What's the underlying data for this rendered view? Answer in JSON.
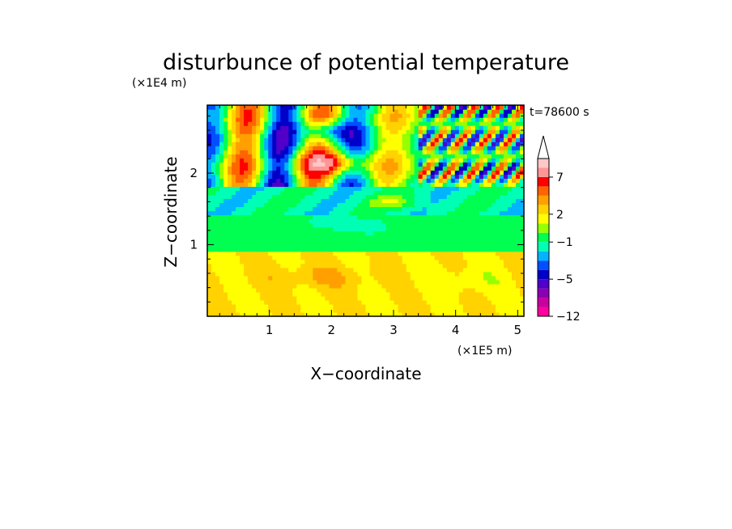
{
  "chart_data": {
    "type": "heatmap",
    "title": "disturbunce of potential temperature",
    "time_label": "t=78600 s",
    "xlabel": "X−coordinate",
    "ylabel": "Z−coordinate",
    "x_scale_label": "(×1E5 m)",
    "y_scale_label": "(×1E4 m)",
    "xlim": [
      0,
      5.1
    ],
    "ylim": [
      0,
      2.95
    ],
    "x_ticks": [
      1,
      2,
      3,
      4,
      5
    ],
    "y_ticks": [
      1,
      2
    ],
    "x_tick_labels": [
      "1",
      "2",
      "3",
      "4",
      "5"
    ],
    "y_tick_labels": [
      "1",
      "2"
    ],
    "colorbar": {
      "levels": [
        -12,
        -11,
        -9,
        -7,
        -5,
        -4,
        -3,
        -2,
        -1,
        0,
        1,
        2,
        3,
        4,
        5,
        7,
        9
      ],
      "labels": [
        {
          "value": -12,
          "text": "−12"
        },
        {
          "value": -5,
          "text": "−5"
        },
        {
          "value": -1,
          "text": "−1"
        },
        {
          "value": 2,
          "text": "2"
        },
        {
          "value": 7,
          "text": "7"
        }
      ],
      "colors": [
        "#ff00a0",
        "#c800a0",
        "#8c00b4",
        "#5000c8",
        "#0000c8",
        "#0050ff",
        "#00b4ff",
        "#00ffb4",
        "#00ff50",
        "#96ff00",
        "#ffff00",
        "#ffd200",
        "#ffa000",
        "#ff6400",
        "#ff0000",
        "#ff9696",
        "#ffc8c8"
      ],
      "extend": "max"
    },
    "field_features": [
      {
        "kind": "surface_warm_layer",
        "z_range": [
          0,
          0.9
        ],
        "value": 2
      },
      {
        "kind": "neutral_band",
        "z_range": [
          0.9,
          1.4
        ],
        "value": -0.5
      },
      {
        "kind": "cold_band",
        "z_range": [
          1.4,
          1.8
        ],
        "value": -1.5
      },
      {
        "kind": "wave_pattern",
        "z_range": [
          1.8,
          2.95
        ],
        "amplitude": 9
      }
    ]
  }
}
